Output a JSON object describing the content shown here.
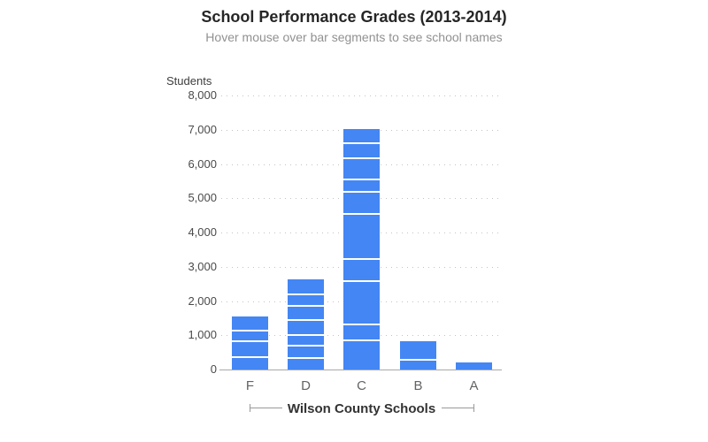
{
  "chart_data": {
    "type": "bar",
    "stacked": true,
    "title": "School Performance Grades (2013-2014)",
    "subtitle": "Hover mouse over bar segments to see school names",
    "ylabel": "Students",
    "xlabel": "Wilson County Schools",
    "ylim": [
      0,
      8000
    ],
    "ytick_step": 1000,
    "ytick_labels": [
      "8,000",
      "7,000",
      "6,000",
      "5,000",
      "4,000",
      "3,000",
      "2,000",
      "1,000",
      "0"
    ],
    "grid": "dotted-horizontal",
    "legend": "none",
    "bar_color": "#4486f4",
    "segment_order": "bottom-to-top",
    "categories": [
      "F",
      "D",
      "C",
      "B",
      "A"
    ],
    "series": [
      {
        "category": "F",
        "segments": [
          335,
          470,
          310,
          440
        ],
        "total": 1555
      },
      {
        "category": "D",
        "segments": [
          315,
          360,
          300,
          450,
          415,
          325,
          470
        ],
        "total": 2635
      },
      {
        "category": "C",
        "segments": [
          820,
          455,
          1265,
          635,
          1315,
          650,
          355,
          610,
          450,
          435
        ],
        "total": 6990
      },
      {
        "category": "B",
        "segments": [
          250,
          555
        ],
        "total": 805
      },
      {
        "category": "A",
        "segments": [
          205
        ],
        "total": 205
      }
    ]
  },
  "colors": {
    "bar": "#4486f4",
    "axis_line": "#a8a8a8",
    "gridline": "#c3c3c3",
    "title": "#262626",
    "subtitle": "#919191",
    "y_tick": "#4a4a4a",
    "x_tick": "#636363",
    "bracket": "#999999"
  }
}
